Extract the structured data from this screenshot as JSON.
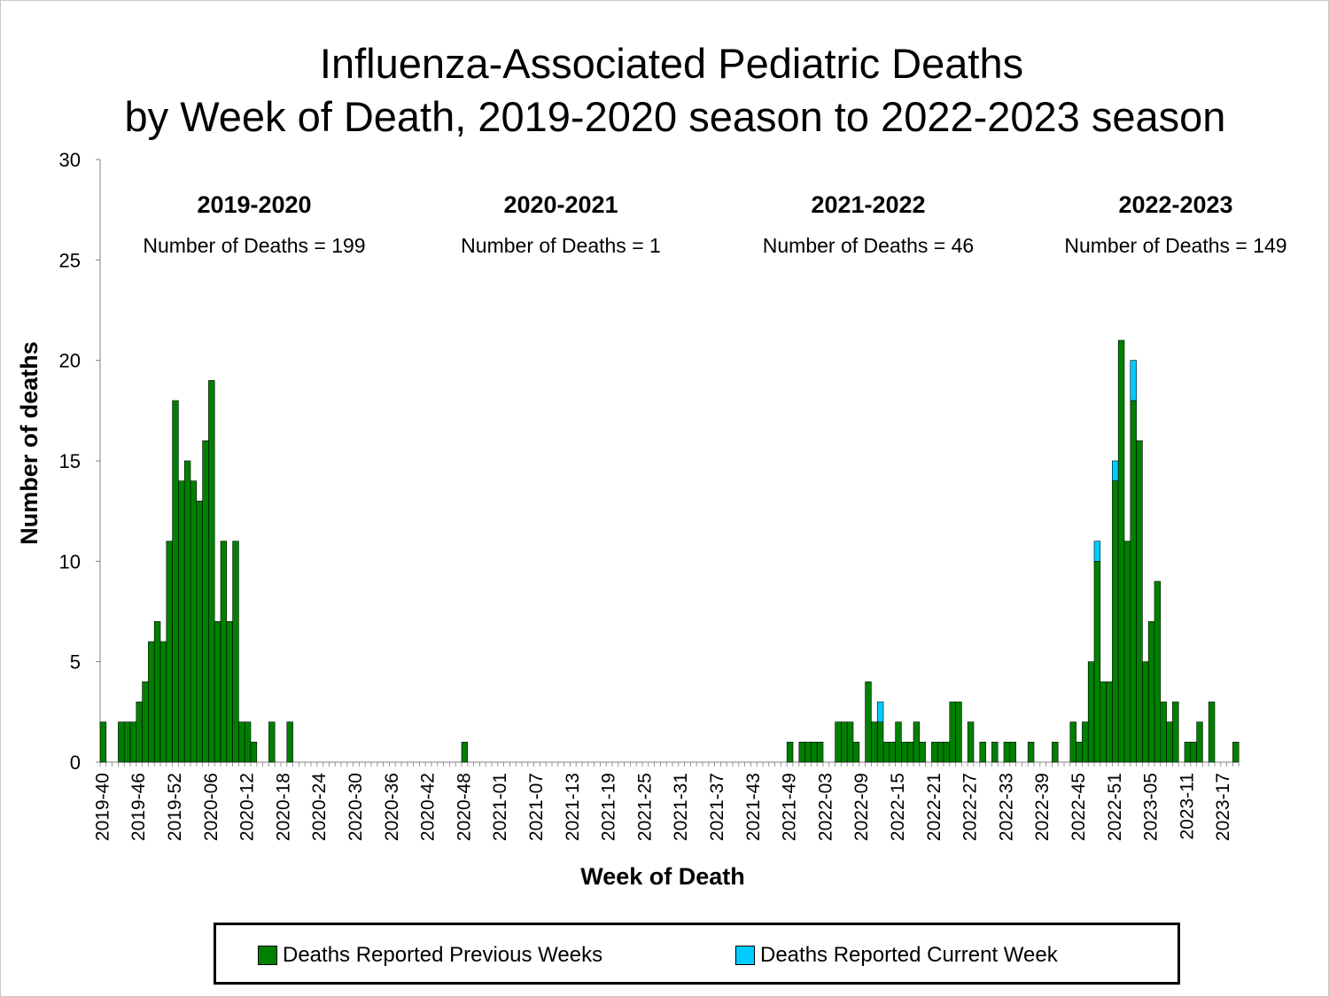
{
  "chart_data": {
    "type": "bar",
    "stacked": true,
    "title": "Influenza-Associated Pediatric Deaths",
    "subtitle": "by Week of Death, 2019-2020 season to 2022-2023 season",
    "xlabel": "Week of Death",
    "ylabel": "Number of deaths",
    "ylim": [
      0,
      30
    ],
    "yticks": [
      0,
      5,
      10,
      15,
      20,
      25,
      30
    ],
    "start_week": "2019-40",
    "x_tick_labels": [
      "2019-40",
      "2019-46",
      "2019-52",
      "2020-06",
      "2020-12",
      "2020-18",
      "2020-24",
      "2020-30",
      "2020-36",
      "2020-42",
      "2020-48",
      "2021-01",
      "2021-07",
      "2021-13",
      "2021-19",
      "2021-25",
      "2021-31",
      "2021-37",
      "2021-43",
      "2021-49",
      "2022-03",
      "2022-09",
      "2022-15",
      "2022-21",
      "2022-27",
      "2022-33",
      "2022-39",
      "2022-45",
      "2022-51",
      "2023-05",
      "2023-11",
      "2023-17"
    ],
    "grid": false,
    "legend_position": "bottom",
    "series": [
      {
        "name": "Deaths Reported Previous Weeks",
        "color": "#008000",
        "values": [
          2,
          0,
          0,
          2,
          2,
          2,
          3,
          4,
          6,
          7,
          6,
          11,
          18,
          14,
          15,
          14,
          13,
          16,
          19,
          7,
          11,
          7,
          11,
          2,
          2,
          1,
          0,
          0,
          2,
          0,
          0,
          2,
          0,
          0,
          0,
          0,
          0,
          0,
          0,
          0,
          0,
          0,
          0,
          0,
          0,
          0,
          0,
          0,
          0,
          0,
          0,
          0,
          0,
          0,
          0,
          0,
          0,
          0,
          0,
          0,
          1,
          0,
          0,
          0,
          0,
          0,
          0,
          0,
          0,
          0,
          0,
          0,
          0,
          0,
          0,
          0,
          0,
          0,
          0,
          0,
          0,
          0,
          0,
          0,
          0,
          0,
          0,
          0,
          0,
          0,
          0,
          0,
          0,
          0,
          0,
          0,
          0,
          0,
          0,
          0,
          0,
          0,
          0,
          0,
          0,
          0,
          0,
          0,
          0,
          0,
          0,
          0,
          0,
          0,
          1,
          0,
          1,
          1,
          1,
          1,
          0,
          0,
          2,
          2,
          2,
          1,
          0,
          4,
          2,
          2,
          1,
          1,
          2,
          1,
          1,
          2,
          1,
          0,
          1,
          1,
          1,
          3,
          3,
          0,
          2,
          0,
          1,
          0,
          1,
          0,
          1,
          1,
          0,
          0,
          1,
          0,
          0,
          0,
          1,
          0,
          0,
          2,
          1,
          2,
          5,
          10,
          4,
          4,
          14,
          21,
          11,
          18,
          16,
          5,
          7,
          9,
          3,
          2,
          3,
          0,
          1,
          1,
          2,
          0,
          3,
          0,
          0,
          0,
          1
        ]
      },
      {
        "name": "Deaths Reported Current Week",
        "color": "#00ccff",
        "values": [
          0,
          0,
          0,
          0,
          0,
          0,
          0,
          0,
          0,
          0,
          0,
          0,
          0,
          0,
          0,
          0,
          0,
          0,
          0,
          0,
          0,
          0,
          0,
          0,
          0,
          0,
          0,
          0,
          0,
          0,
          0,
          0,
          0,
          0,
          0,
          0,
          0,
          0,
          0,
          0,
          0,
          0,
          0,
          0,
          0,
          0,
          0,
          0,
          0,
          0,
          0,
          0,
          0,
          0,
          0,
          0,
          0,
          0,
          0,
          0,
          0,
          0,
          0,
          0,
          0,
          0,
          0,
          0,
          0,
          0,
          0,
          0,
          0,
          0,
          0,
          0,
          0,
          0,
          0,
          0,
          0,
          0,
          0,
          0,
          0,
          0,
          0,
          0,
          0,
          0,
          0,
          0,
          0,
          0,
          0,
          0,
          0,
          0,
          0,
          0,
          0,
          0,
          0,
          0,
          0,
          0,
          0,
          0,
          0,
          0,
          0,
          0,
          0,
          0,
          0,
          0,
          0,
          0,
          0,
          0,
          0,
          0,
          0,
          0,
          0,
          0,
          0,
          0,
          0,
          1,
          0,
          0,
          0,
          0,
          0,
          0,
          0,
          0,
          0,
          0,
          0,
          0,
          0,
          0,
          0,
          0,
          0,
          0,
          0,
          0,
          0,
          0,
          0,
          0,
          0,
          0,
          0,
          0,
          0,
          0,
          0,
          0,
          0,
          0,
          0,
          1,
          0,
          0,
          1,
          0,
          0,
          2,
          0,
          0,
          0,
          0,
          0,
          0,
          0,
          0,
          0,
          0,
          0,
          0,
          0,
          0,
          0,
          0,
          0
        ]
      }
    ],
    "annotations": [
      {
        "season": "2019-2020",
        "text": "Number of Deaths = 199"
      },
      {
        "season": "2020-2021",
        "text": "Number of Deaths = 1"
      },
      {
        "season": "2021-2022",
        "text": "Number of Deaths = 46"
      },
      {
        "season": "2022-2023",
        "text": "Number of Deaths = 149"
      }
    ]
  },
  "legend": {
    "previous_label": "Deaths Reported Previous Weeks",
    "current_label": "Deaths Reported Current Week",
    "previous_color": "#008000",
    "current_color": "#00ccff"
  }
}
